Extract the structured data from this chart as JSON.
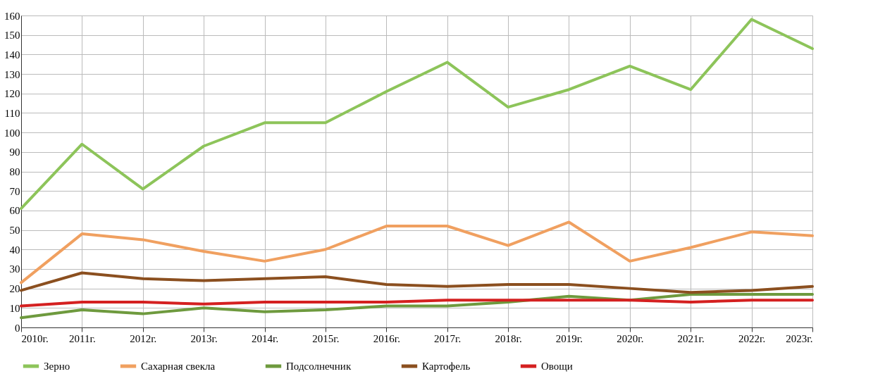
{
  "chart_data": {
    "type": "line",
    "categories": [
      "2010г.",
      "2011г.",
      "2012г.",
      "2013г.",
      "2014г.",
      "2015г.",
      "2016г.",
      "2017г.",
      "2018г.",
      "2019г.",
      "2020г.",
      "2021г.",
      "2022г.",
      "2023г."
    ],
    "series": [
      {
        "name": "Зерно",
        "color": "#8dc45a",
        "values": [
          61,
          94,
          71,
          93,
          105,
          105,
          121,
          136,
          113,
          122,
          134,
          122,
          158,
          143
        ]
      },
      {
        "name": "Сахарная свекла",
        "color": "#f0a060",
        "values": [
          23,
          48,
          45,
          39,
          34,
          40,
          52,
          52,
          42,
          54,
          34,
          41,
          49,
          47
        ]
      },
      {
        "name": "Подсолнечник",
        "color": "#6e9a3e",
        "values": [
          5,
          9,
          7,
          10,
          8,
          9,
          11,
          11,
          13,
          16,
          14,
          17,
          17,
          17
        ]
      },
      {
        "name": "Картофель",
        "color": "#8b4f1f",
        "values": [
          19,
          28,
          25,
          24,
          25,
          26,
          22,
          21,
          22,
          22,
          20,
          18,
          19,
          21
        ]
      },
      {
        "name": "Овощи",
        "color": "#d42020",
        "values": [
          11,
          13,
          13,
          12,
          13,
          13,
          13,
          14,
          14,
          14,
          14,
          13,
          14,
          14
        ]
      }
    ],
    "ylim": [
      0,
      160
    ],
    "yticks": [
      0,
      10,
      20,
      30,
      40,
      50,
      60,
      70,
      80,
      90,
      100,
      110,
      120,
      130,
      140,
      150,
      160
    ],
    "grid": true,
    "legend": "bottom",
    "marker": "none",
    "line_style": "solid"
  }
}
